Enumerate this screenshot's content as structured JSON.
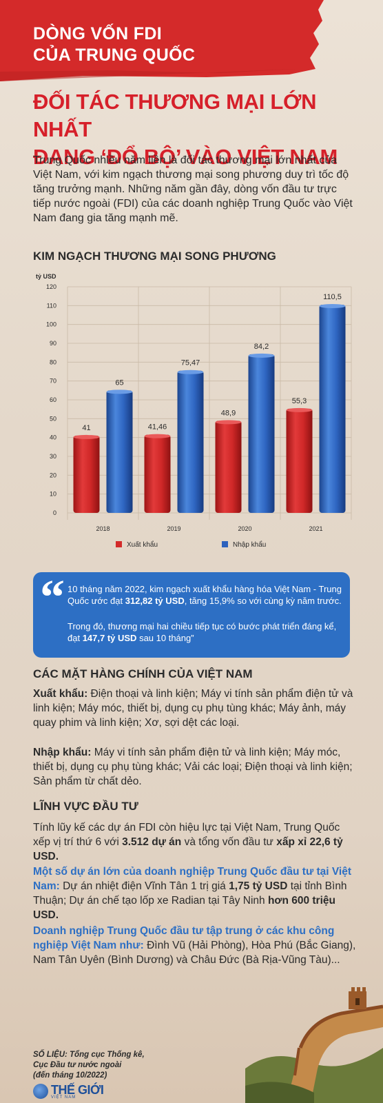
{
  "kicker": {
    "line1": "DÒNG VỐN FDI",
    "line2": "CỦA TRUNG QUỐC"
  },
  "headline": {
    "line1": "ĐỐI TÁC THƯƠNG MẠI LỚN NHẤT",
    "line2": "ĐANG ‘ĐỔ BỘ’ VÀO VIỆT NAM"
  },
  "intro": "Trung Quốc nhiều năm liền là đối tác thương mại lớn nhất của Việt Nam, với kim ngạch thương mại song phương duy trì tốc độ tăng trưởng mạnh. Những năm gần đây, dòng vốn đầu tư trực tiếp nước ngoài (FDI) của các doanh nghiệp Trung Quốc vào Việt Nam đang gia tăng mạnh mẽ.",
  "chart_title": "KIM NGẠCH THƯƠNG MẠI SONG PHƯƠNG",
  "chart_data": {
    "type": "bar",
    "ylabel": "tỷ USD",
    "ylim": [
      0,
      120
    ],
    "yticks": [
      0,
      10,
      20,
      30,
      40,
      50,
      60,
      70,
      80,
      90,
      100,
      110,
      120
    ],
    "categories": [
      "2018",
      "2019",
      "2020",
      "2021"
    ],
    "series": [
      {
        "name": "Xuất khẩu",
        "color": "#d32a2a",
        "values": [
          41,
          41.46,
          48.9,
          55.3
        ],
        "labels": [
          "41",
          "41,46",
          "48,9",
          "55,3"
        ]
      },
      {
        "name": "Nhập khẩu",
        "color": "#2d62bd",
        "values": [
          65,
          75.47,
          84.2,
          110.5
        ],
        "labels": [
          "65",
          "75,47",
          "84,2",
          "110,5"
        ]
      }
    ],
    "grid": true,
    "legend": "bottom"
  },
  "quote": {
    "p1_pre": "10 tháng năm 2022, kim ngạch xuất khẩu hàng hóa Việt Nam - Trung Quốc ước đạt ",
    "p1_bold": "312,82 tỷ USD",
    "p1_post": ", tăng 15,9% so với cùng kỳ năm trước.",
    "p2_pre": "Trong đó, thương mại hai chiều tiếp tục có bước phát triển đáng kể, đạt ",
    "p2_bold": "147,7 tỷ USD",
    "p2_post": " sau 10 tháng”"
  },
  "goods": {
    "title": "CÁC MẶT HÀNG CHÍNH CỦA VIỆT NAM",
    "export_label": "Xuất khẩu:",
    "export_text": " Điện thoại và linh kiện; Máy vi tính sản phẩm điện tử và linh kiện; Máy móc, thiết bị, dụng cụ phụ tùng khác; Máy ảnh, máy quay phim và linh kiện; Xơ, sợi dệt các loại.",
    "import_label": "Nhập khẩu:",
    "import_text": " Máy vi tính sản phẩm điện tử và linh kiện; Máy móc, thiết bị, dụng cụ phụ tùng khác; Vải các loại; Điện thoại và linh kiện; Sản phẩm từ chất dẻo."
  },
  "invest": {
    "title": "LĨNH VỰC ĐẦU TƯ",
    "p1_a": "Tính lũy kế các dự án FDI còn hiệu lực tại Việt Nam, Trung Quốc xếp vị trí thứ 6 với ",
    "p1_b": "3.512 dự án",
    "p1_c": " và tổng vốn đầu tư ",
    "p1_d": "xấp xỉ 22,6 tỷ USD.",
    "p2_lead": "Một số dự án lớn của doanh nghiệp Trung Quốc đầu tư tại Việt Nam:",
    "p2_a": " Dự án nhiệt điện Vĩnh Tân 1 trị giá ",
    "p2_b": "1,75 tỷ USD",
    "p2_c": " tại tỉnh Bình Thuận; Dự án chế tạo lốp xe Radian tại Tây Ninh ",
    "p2_d": "hơn 600 triệu USD.",
    "p3_lead": "Doanh nghiệp Trung Quốc đầu tư tập trung ở các khu công nghiệp Việt Nam như:",
    "p3_a": " Đình Vũ (Hải Phòng), Hòa Phú (Bắc Giang), Nam Tân Uyên (Bình Dương) và Châu Đức (Bà Rịa-Vũng Tàu)..."
  },
  "source": {
    "line1": "SỐ LIỆU: Tổng cục Thống kê,",
    "line2": "Cục Đầu tư nước ngoài",
    "line3": "(đến tháng 10/2022)"
  },
  "logo": {
    "name": "THẾ GIỚI",
    "sub": "VIỆT NAM"
  }
}
